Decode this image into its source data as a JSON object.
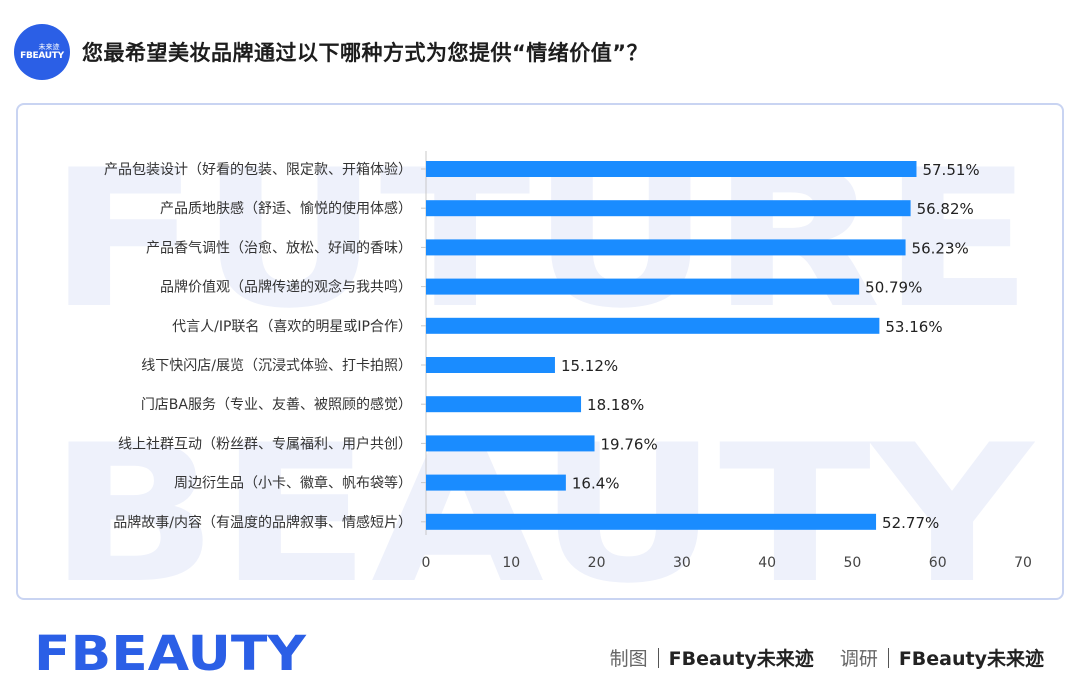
{
  "header": {
    "logo_sub": "未来迹",
    "logo_main": "FBEAUTY",
    "title": "您最希望美妆品牌通过以下哪种方式为您提供“情绪价值”？"
  },
  "chart_data": {
    "type": "bar",
    "orientation": "horizontal",
    "title": "",
    "xlabel": "",
    "ylabel": "",
    "categories": [
      "产品包装设计（好看的包装、限定款、开箱体验）",
      "产品质地肤感（舒适、愉悦的使用体感）",
      "产品香气调性（治愈、放松、好闻的香味）",
      "品牌价值观（品牌传递的观念与我共鸣）",
      "代言人/IP联名（喜欢的明星或IP合作）",
      "线下快闪店/展览（沉浸式体验、打卡拍照）",
      "门店BA服务（专业、友善、被照顾的感觉）",
      "线上社群互动（粉丝群、专属福利、用户共创）",
      "周边衍生品（小卡、徽章、帆布袋等）",
      "品牌故事/内容（有温度的品牌叙事、情感短片）"
    ],
    "values": [
      57.51,
      56.82,
      56.23,
      50.79,
      53.16,
      15.12,
      18.18,
      19.76,
      16.4,
      52.77
    ],
    "value_labels": [
      "57.51%",
      "56.82%",
      "56.23%",
      "50.79%",
      "53.16%",
      "15.12%",
      "18.18%",
      "19.76%",
      "16.4%",
      "52.77%"
    ],
    "xlim": [
      0,
      70
    ],
    "xticks": [
      "0",
      "10",
      "20",
      "30",
      "40",
      "50",
      "60",
      "70"
    ],
    "grid": false,
    "bar_color": "#1a8cff",
    "watermark": [
      "FUTURE",
      "BEAUTY"
    ]
  },
  "footer": {
    "logo_text": "FBEAUTY",
    "credit_role_1": "制图",
    "credit_org_1": "FBeauty未来迹",
    "credit_role_2": "调研",
    "credit_org_2": "FBeauty未来迹"
  },
  "colors": {
    "brand_blue": "#2b5fe6",
    "bar_blue": "#1a8cff",
    "frame_border": "#c9d4f2",
    "watermark": "#eef1fb"
  }
}
